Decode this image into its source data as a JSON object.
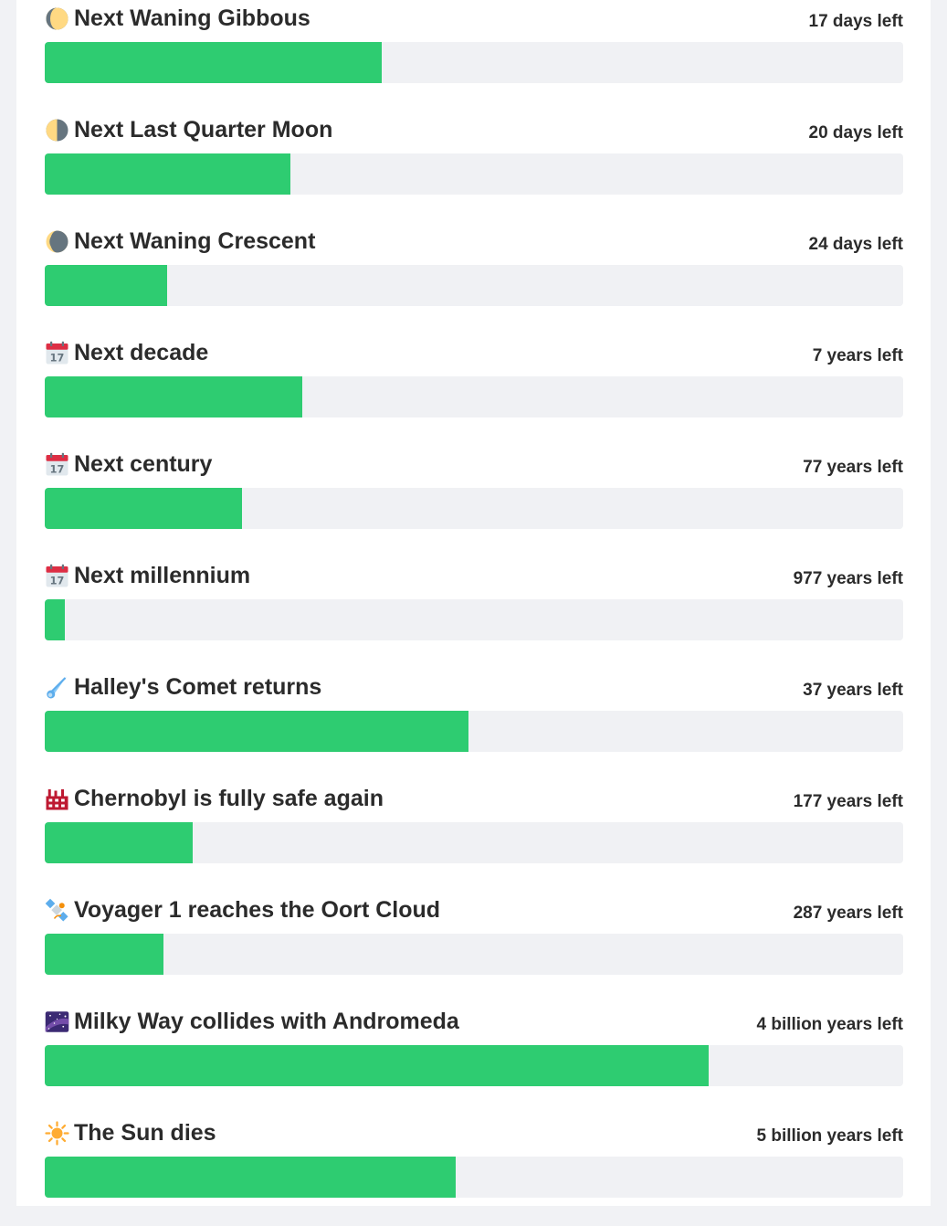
{
  "items": [
    {
      "title": "Next Waning Gibbous",
      "remaining": "17 days left",
      "progress": 0.393,
      "icon": "waning-gibbous-moon-icon"
    },
    {
      "title": "Next Last Quarter Moon",
      "remaining": "20 days left",
      "progress": 0.286,
      "icon": "last-quarter-moon-icon"
    },
    {
      "title": "Next Waning Crescent",
      "remaining": "24 days left",
      "progress": 0.143,
      "icon": "waning-crescent-moon-icon"
    },
    {
      "title": "Next decade",
      "remaining": "7 years left",
      "progress": 0.3,
      "icon": "calendar-icon"
    },
    {
      "title": "Next century",
      "remaining": "77 years left",
      "progress": 0.23,
      "icon": "calendar-icon"
    },
    {
      "title": "Next millennium",
      "remaining": "977 years left",
      "progress": 0.023,
      "icon": "calendar-icon"
    },
    {
      "title": "Halley's Comet returns",
      "remaining": "37 years left",
      "progress": 0.494,
      "icon": "comet-icon"
    },
    {
      "title": "Chernobyl is fully safe again",
      "remaining": "177 years left",
      "progress": 0.172,
      "icon": "factory-icon"
    },
    {
      "title": "Voyager 1 reaches the Oort Cloud",
      "remaining": "287 years left",
      "progress": 0.138,
      "icon": "satellite-icon"
    },
    {
      "title": "Milky Way collides with Andromeda",
      "remaining": "4 billion years left",
      "progress": 0.773,
      "icon": "milky-way-icon"
    },
    {
      "title": "The Sun dies",
      "remaining": "5 billion years left",
      "progress": 0.479,
      "icon": "sun-icon"
    }
  ],
  "colors": {
    "fill": "#2ecc71",
    "track": "#f0f1f4",
    "text": "#2b2b2b"
  }
}
